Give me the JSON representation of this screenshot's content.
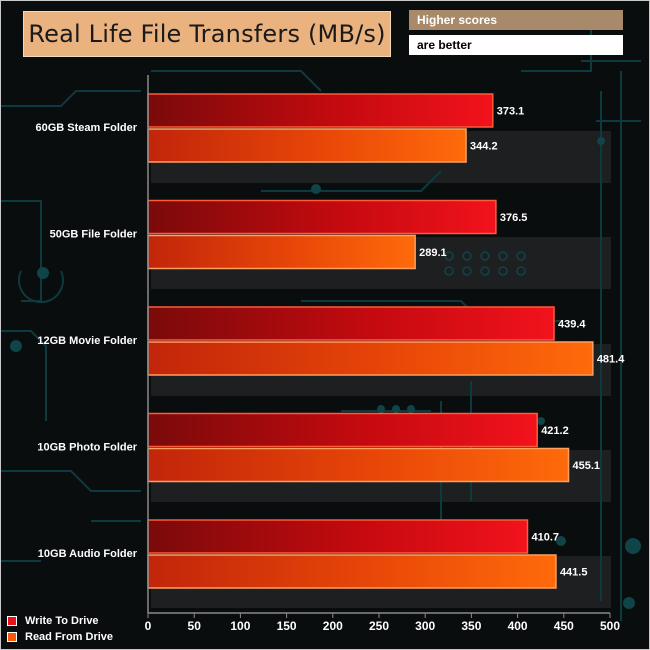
{
  "header": {
    "title": "Real Life File Transfers (MB/s)",
    "higher_scores": "Higher scores",
    "are_better": "are better"
  },
  "chart_data": {
    "type": "bar",
    "orientation": "horizontal",
    "title": "Real Life File Transfers (MB/s)",
    "categories": [
      "60GB Steam Folder",
      "50GB File Folder",
      "12GB Movie Folder",
      "10GB Photo Folder",
      "10GB Audio Folder"
    ],
    "series": [
      {
        "name": "Write To  Drive",
        "color": "#e8101a",
        "values": [
          373.1,
          376.5,
          439.4,
          421.2,
          410.7
        ]
      },
      {
        "name": "Read From  Drive",
        "color": "#f45a08",
        "values": [
          344.2,
          289.1,
          481.4,
          455.1,
          441.5
        ]
      }
    ],
    "xlim": [
      0,
      500
    ],
    "xticks": [
      0,
      50,
      100,
      150,
      200,
      250,
      300,
      350,
      400,
      450,
      500
    ],
    "legend_position": "bottom-left",
    "grid": false
  }
}
